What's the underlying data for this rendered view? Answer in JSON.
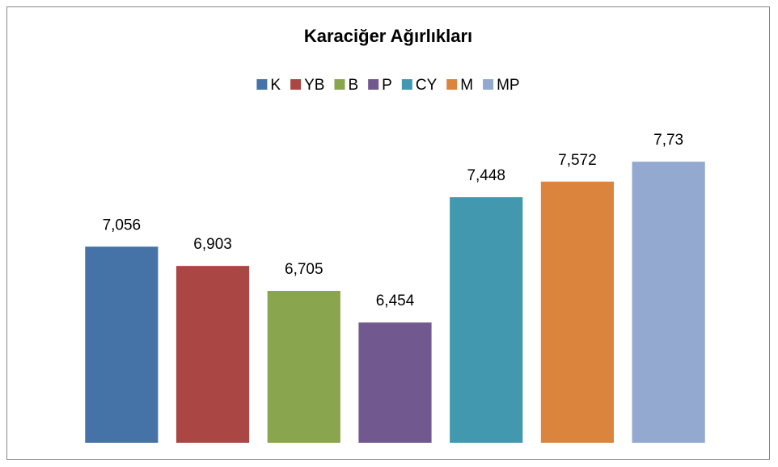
{
  "chart_data": {
    "type": "bar",
    "title": "Karaciğer Ağırlıkları",
    "series": [
      {
        "name": "K",
        "color": "#4572a7",
        "values": [
          7.056
        ],
        "value_labels": [
          "7,056"
        ]
      },
      {
        "name": "YB",
        "color": "#aa4643",
        "values": [
          6.903
        ],
        "value_labels": [
          "6,903"
        ]
      },
      {
        "name": "B",
        "color": "#89a54e",
        "values": [
          6.705
        ],
        "value_labels": [
          "6,705"
        ]
      },
      {
        "name": "P",
        "color": "#71588f",
        "values": [
          6.454
        ],
        "value_labels": [
          "6,454"
        ]
      },
      {
        "name": "CY",
        "color": "#4198af",
        "values": [
          7.448
        ],
        "value_labels": [
          "7,448"
        ]
      },
      {
        "name": "M",
        "color": "#db843d",
        "values": [
          7.572
        ],
        "value_labels": [
          "7,572"
        ]
      },
      {
        "name": "MP",
        "color": "#93a9cf",
        "values": [
          7.73
        ],
        "value_labels": [
          "7,73"
        ]
      }
    ],
    "ylim": [
      5.5,
      8
    ],
    "legend": "top"
  }
}
